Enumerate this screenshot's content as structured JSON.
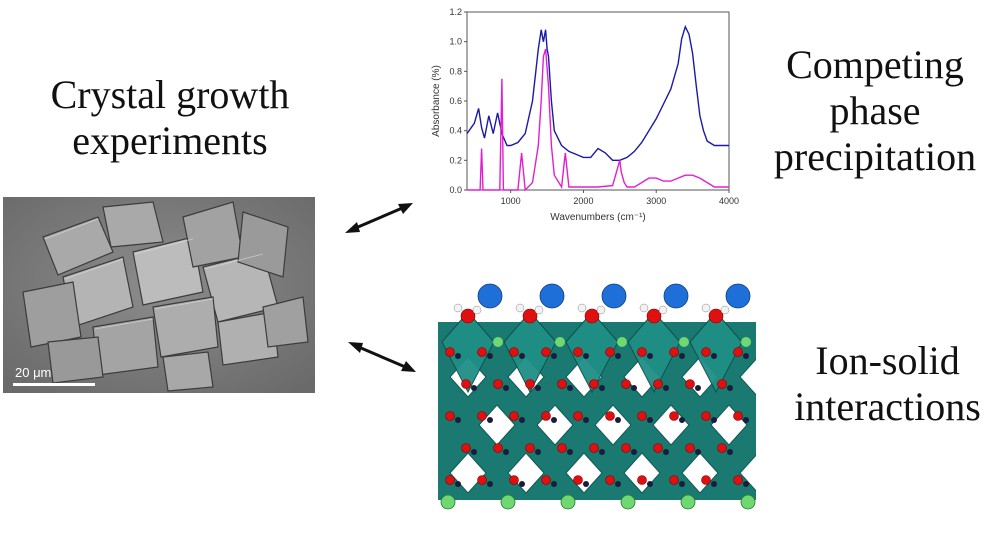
{
  "captions": {
    "left": [
      "Crystal growth",
      "experiments"
    ],
    "right_top": [
      "Competing",
      "phase",
      "precipitation"
    ],
    "right_bottom": [
      "Ion-solid",
      "interactions"
    ]
  },
  "sem_image": {
    "scale_label": "20 μm"
  },
  "colors": {
    "blue_series": "#1a1aa8",
    "magenta_series": "#e020d0",
    "polyhedra": "#1f8f86",
    "oxygen": "#e01010",
    "cation_blue": "#1f6fd8",
    "cation_green": "#6fd870"
  },
  "chart_data": {
    "type": "line",
    "xlabel": "Wavenumbers (cm⁻¹)",
    "ylabel": "Absorbance (%)",
    "xlim": [
      400,
      4000
    ],
    "ylim": [
      0,
      1.2
    ],
    "xticks": [
      "1000",
      "2000",
      "3000",
      "4000"
    ],
    "yticks": [
      "0.0",
      "0.2",
      "0.4",
      "0.6",
      "0.8",
      "1.0",
      "1.2"
    ],
    "series": [
      {
        "color": "#1a1aa8",
        "x": [
          400,
          500,
          560,
          600,
          640,
          700,
          760,
          820,
          880,
          950,
          1000,
          1100,
          1200,
          1300,
          1380,
          1420,
          1450,
          1480,
          1500,
          1520,
          1560,
          1600,
          1700,
          1800,
          1900,
          2000,
          2100,
          2200,
          2300,
          2400,
          2500,
          2600,
          2700,
          2800,
          2900,
          3000,
          3100,
          3200,
          3300,
          3350,
          3400,
          3450,
          3500,
          3550,
          3600,
          3650,
          3700,
          3800,
          3900,
          4000
        ],
        "y": [
          0.38,
          0.45,
          0.55,
          0.42,
          0.35,
          0.5,
          0.38,
          0.52,
          0.38,
          0.3,
          0.3,
          0.32,
          0.38,
          0.6,
          0.95,
          1.08,
          1.0,
          1.08,
          0.95,
          0.9,
          0.6,
          0.4,
          0.3,
          0.26,
          0.24,
          0.22,
          0.22,
          0.28,
          0.25,
          0.2,
          0.2,
          0.22,
          0.26,
          0.32,
          0.4,
          0.48,
          0.58,
          0.68,
          0.85,
          1.02,
          1.1,
          1.05,
          0.92,
          0.7,
          0.5,
          0.4,
          0.33,
          0.3,
          0.3,
          0.3
        ]
      },
      {
        "color": "#e020d0",
        "x": [
          400,
          580,
          600,
          620,
          700,
          850,
          880,
          900,
          950,
          1000,
          1100,
          1150,
          1200,
          1300,
          1380,
          1420,
          1450,
          1480,
          1520,
          1560,
          1600,
          1700,
          1750,
          1800,
          1900,
          2000,
          2200,
          2400,
          2500,
          2520,
          2560,
          2600,
          2700,
          2800,
          2900,
          3000,
          3100,
          3200,
          3300,
          3400,
          3500,
          3600,
          3700,
          3800,
          4000
        ],
        "y": [
          0.0,
          0.0,
          0.28,
          0.0,
          0.0,
          0.0,
          0.75,
          0.0,
          0.0,
          0.0,
          0.0,
          0.25,
          0.0,
          0.05,
          0.3,
          0.6,
          0.9,
          0.95,
          0.7,
          0.3,
          0.1,
          0.02,
          0.25,
          0.02,
          0.02,
          0.02,
          0.02,
          0.03,
          0.2,
          0.12,
          0.05,
          0.02,
          0.02,
          0.05,
          0.08,
          0.08,
          0.06,
          0.06,
          0.08,
          0.1,
          0.1,
          0.08,
          0.05,
          0.02,
          0.02
        ]
      }
    ]
  }
}
